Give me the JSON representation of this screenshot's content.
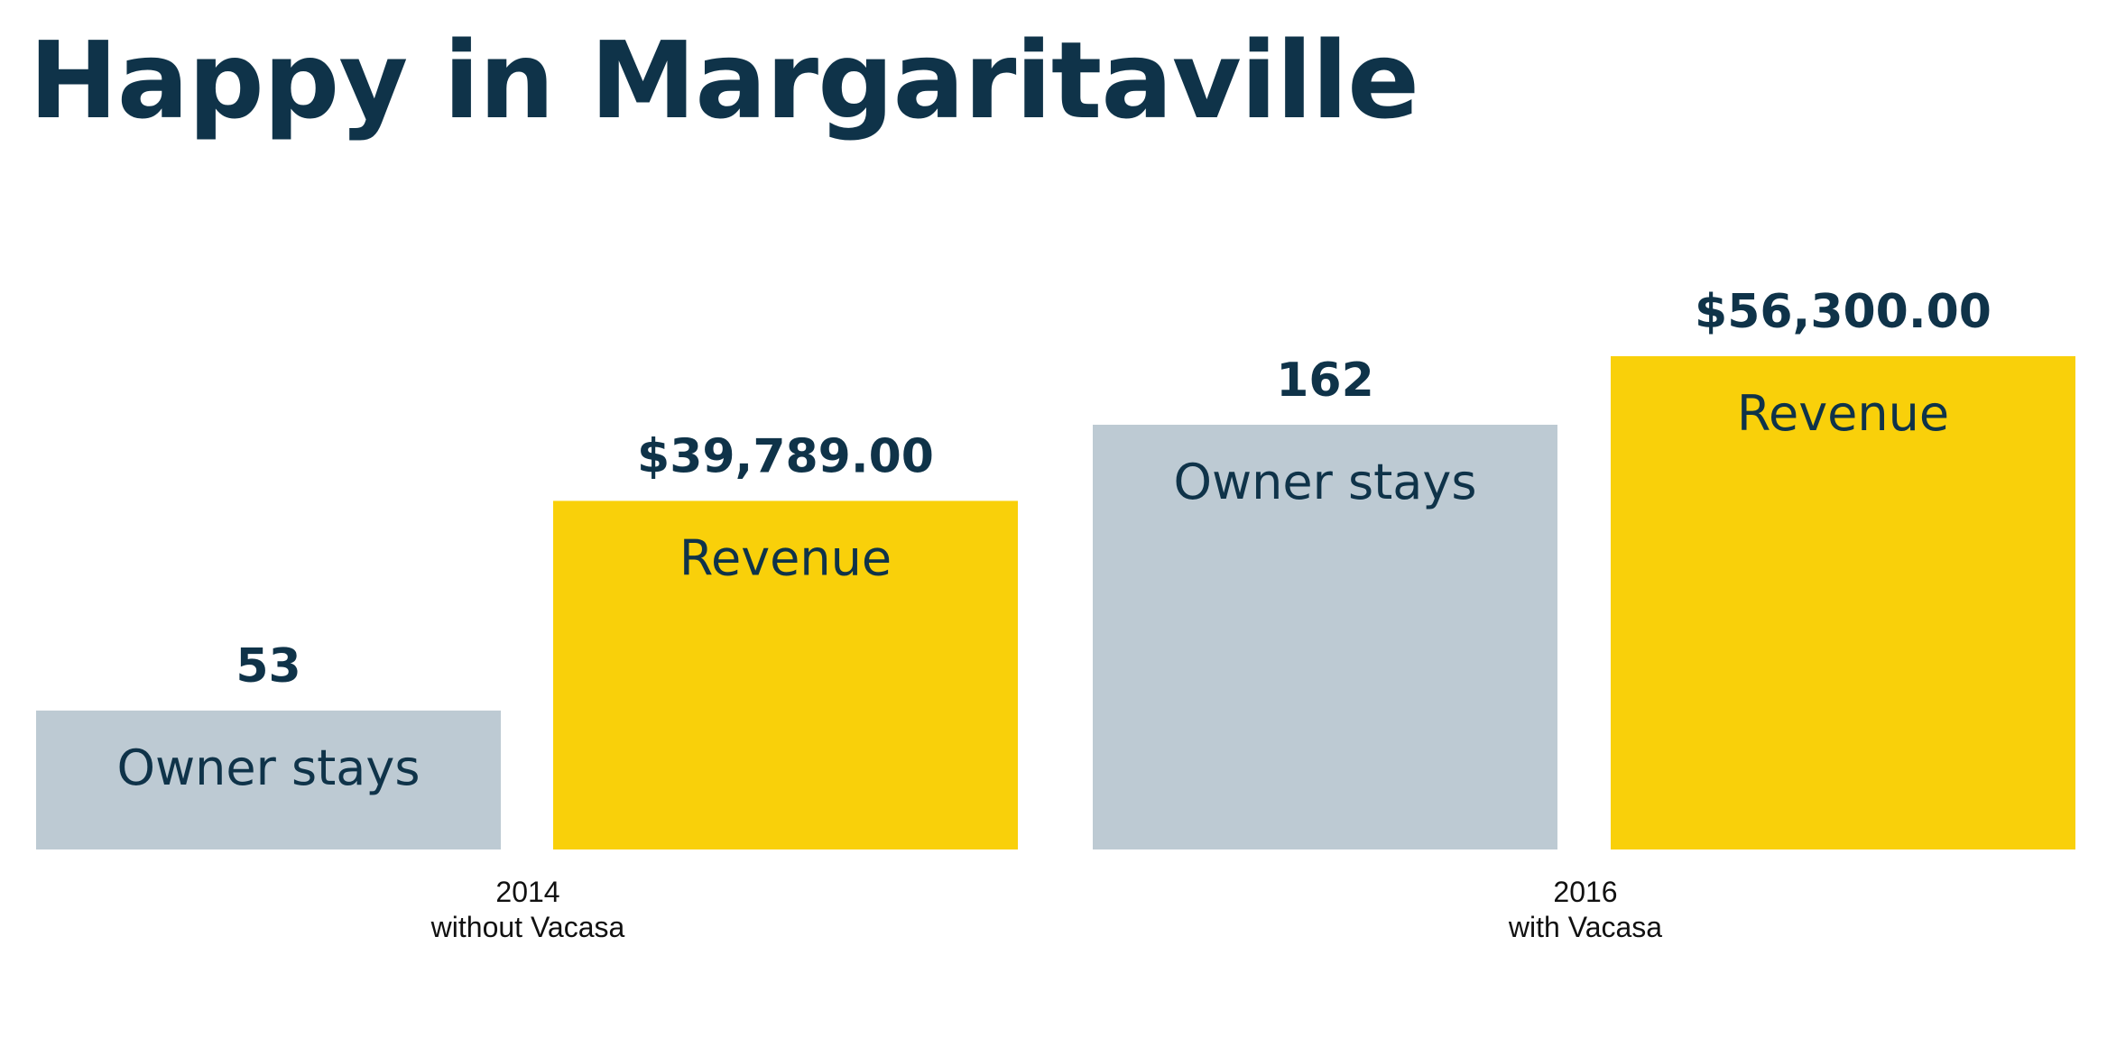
{
  "title": "Happy in Margaritaville",
  "colors": {
    "text": "#0f3349",
    "owner_stays": "#bdcad3",
    "revenue": "#f9d00a"
  },
  "chart_data": {
    "type": "bar",
    "title": "Happy in Margaritaville",
    "groups": [
      {
        "year": "2014",
        "subtitle": "without Vacasa",
        "bars": [
          {
            "name": "Owner stays",
            "value": 53,
            "value_label": "53",
            "color": "#bdcad3"
          },
          {
            "name": "Revenue",
            "value": 39789.0,
            "value_label": "$39,789.00",
            "color": "#f9d00a"
          }
        ]
      },
      {
        "year": "2016",
        "subtitle": "with Vacasa",
        "bars": [
          {
            "name": "Owner stays",
            "value": 162,
            "value_label": "162",
            "color": "#bdcad3"
          },
          {
            "name": "Revenue",
            "value": 56300.0,
            "value_label": "$56,300.00",
            "color": "#f9d00a"
          }
        ]
      }
    ],
    "axes": {
      "x_visible": false,
      "y_visible": false
    },
    "grid": false,
    "legend": "none"
  }
}
